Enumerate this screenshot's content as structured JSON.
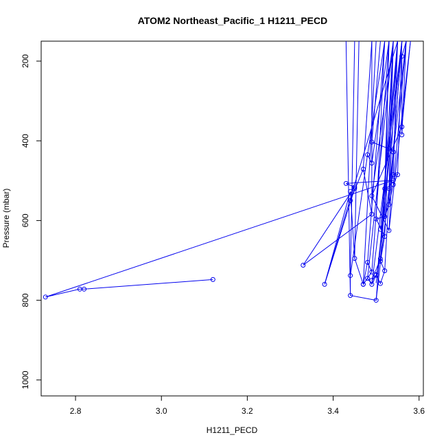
{
  "chart_data": {
    "type": "line",
    "title": "ATOM2 Northeast_Pacific_1 H1211_PECD",
    "xlabel": "H1211_PECD",
    "ylabel": "Pressure (mbar)",
    "xlim": [
      2.72,
      3.61
    ],
    "ylim": [
      1040,
      150
    ],
    "y_reversed": true,
    "xticks": [
      2.8,
      3.0,
      3.2,
      3.4,
      3.6
    ],
    "xtick_labels": [
      "2.8",
      "3.0",
      "3.2",
      "3.4",
      "3.6"
    ],
    "yticks": [
      200,
      400,
      600,
      800,
      1000
    ],
    "ytick_labels": [
      "200",
      "400",
      "600",
      "800",
      "1000"
    ],
    "grid": false,
    "legend": "none",
    "colors": {
      "series": "#0000ee"
    },
    "series": [
      {
        "markers": "open-circle",
        "points": [
          [
            3.12,
            748
          ],
          [
            2.82,
            772
          ],
          [
            2.81,
            772
          ],
          [
            2.73,
            792
          ],
          [
            3.54,
            499
          ],
          [
            3.43,
            507
          ],
          [
            3.45,
            516
          ],
          [
            3.33,
            712
          ],
          [
            3.49,
            584
          ],
          [
            3.47,
            471
          ],
          [
            3.44,
            550
          ],
          [
            3.45,
            520
          ],
          [
            3.38,
            760
          ],
          [
            3.44,
            527
          ],
          [
            3.45,
            695
          ],
          [
            3.47,
            760
          ],
          [
            3.48,
            705
          ],
          [
            3.49,
            729
          ],
          [
            3.47,
            760
          ],
          [
            3.48,
            745
          ],
          [
            3.49,
            760
          ],
          [
            3.5,
            737
          ],
          [
            3.49,
            750
          ],
          [
            3.51,
            696
          ],
          [
            3.5,
            736
          ],
          [
            3.51,
            758
          ],
          [
            3.52,
            726
          ],
          [
            3.51,
            702
          ],
          [
            3.52,
            640
          ],
          [
            3.5,
            596
          ],
          [
            3.52,
            590
          ],
          [
            3.51,
            622
          ],
          [
            3.53,
            560
          ],
          [
            3.54,
            510
          ],
          [
            3.55,
            485
          ],
          [
            3.54,
            485
          ],
          [
            3.53,
            520
          ],
          [
            3.52,
            520
          ],
          [
            3.5,
            800
          ],
          [
            3.44,
            788
          ],
          [
            3.44,
            738
          ],
          [
            3.48,
            435
          ],
          [
            3.49,
            456
          ],
          [
            3.49,
            403
          ],
          [
            3.53,
            420
          ],
          [
            3.54,
            428
          ],
          [
            3.53,
            625
          ],
          [
            3.49,
            538
          ],
          [
            3.56,
            365
          ],
          [
            3.56,
            385
          ],
          [
            3.56,
            188
          ]
        ],
        "top_segments": [
          [
            3.5,
            757,
            3.56,
            150
          ],
          [
            3.51,
            696,
            3.55,
            150
          ],
          [
            3.52,
            640,
            3.54,
            150
          ],
          [
            3.5,
            596,
            3.52,
            150
          ],
          [
            3.52,
            590,
            3.53,
            150
          ],
          [
            3.51,
            622,
            3.55,
            150
          ],
          [
            3.53,
            560,
            3.56,
            150
          ],
          [
            3.54,
            510,
            3.57,
            150
          ],
          [
            3.55,
            485,
            3.56,
            150
          ],
          [
            3.54,
            485,
            3.55,
            150
          ],
          [
            3.53,
            520,
            3.54,
            150
          ],
          [
            3.52,
            520,
            3.53,
            150
          ],
          [
            3.5,
            800,
            3.57,
            150
          ],
          [
            3.44,
            788,
            3.43,
            150
          ],
          [
            3.44,
            738,
            3.45,
            150
          ],
          [
            3.48,
            435,
            3.52,
            150
          ],
          [
            3.49,
            456,
            3.53,
            150
          ],
          [
            3.49,
            403,
            3.51,
            150
          ],
          [
            3.53,
            420,
            3.55,
            150
          ],
          [
            3.54,
            428,
            3.56,
            150
          ],
          [
            3.53,
            625,
            3.58,
            150
          ],
          [
            3.49,
            538,
            3.54,
            150
          ],
          [
            3.56,
            365,
            3.58,
            150
          ],
          [
            3.56,
            385,
            3.57,
            150
          ],
          [
            3.56,
            188,
            3.57,
            150
          ],
          [
            3.47,
            471,
            3.49,
            150
          ],
          [
            3.38,
            760,
            3.55,
            150
          ],
          [
            3.45,
            695,
            3.46,
            150
          ],
          [
            3.49,
            729,
            3.53,
            150
          ],
          [
            3.51,
            702,
            3.54,
            150
          ],
          [
            3.52,
            726,
            3.55,
            150
          ],
          [
            3.47,
            760,
            3.5,
            150
          ],
          [
            3.48,
            705,
            3.52,
            150
          ],
          [
            3.49,
            584,
            3.49,
            150
          ],
          [
            3.48,
            745,
            3.54,
            150
          ],
          [
            3.49,
            760,
            3.56,
            150
          ]
        ]
      }
    ]
  }
}
